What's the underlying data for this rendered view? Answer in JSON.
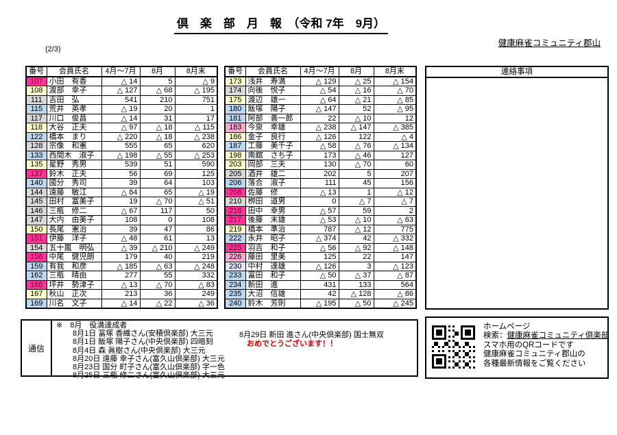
{
  "page": {
    "number_label": "(2/3)"
  },
  "header": {
    "title": "倶　楽　部　月　報　（令和 7年　9月）",
    "organization": "健康麻雀コミュニティ郡山"
  },
  "columns": [
    "番号",
    "会員氏名",
    "4月～7月",
    "8月",
    "8月末"
  ],
  "tables": {
    "left": {
      "rows": [
        {
          "no": "107",
          "name": "小田　有香",
          "apr_jul": "△ 14",
          "aug": "5",
          "aug_end": "△ 9",
          "color": "pink"
        },
        {
          "no": "108",
          "name": "渡部　幸子",
          "apr_jul": "△ 127",
          "aug": "△ 68",
          "aug_end": "△ 195",
          "color": "yellow"
        },
        {
          "no": "111",
          "name": "吉田　弘",
          "apr_jul": "541",
          "aug": "210",
          "aug_end": "751",
          "color": "gray"
        },
        {
          "no": "115",
          "name": "荒井　英孝",
          "apr_jul": "△ 19",
          "aug": "20",
          "aug_end": "1",
          "color": "blue"
        },
        {
          "no": "117",
          "name": "川口　俊昌",
          "apr_jul": "△ 14",
          "aug": "31",
          "aug_end": "17",
          "color": "gray"
        },
        {
          "no": "118",
          "name": "大谷　正夫",
          "apr_jul": "△ 97",
          "aug": "△ 18",
          "aug_end": "△ 115",
          "color": "yellow"
        },
        {
          "no": "122",
          "name": "橋本　まり",
          "apr_jul": "△ 220",
          "aug": "△ 18",
          "aug_end": "△ 238",
          "color": "blue"
        },
        {
          "no": "128",
          "name": "宗像　和憲",
          "apr_jul": "555",
          "aug": "65",
          "aug_end": "620",
          "color": "gray"
        },
        {
          "no": "133",
          "name": "西間木　淑子",
          "apr_jul": "△ 198",
          "aug": "△ 55",
          "aug_end": "△ 253",
          "color": "blue"
        },
        {
          "no": "135",
          "name": "星野　秀男",
          "apr_jul": "539",
          "aug": "51",
          "aug_end": "590",
          "color": "yellow"
        },
        {
          "no": "137",
          "name": "鈴木　正夫",
          "apr_jul": "56",
          "aug": "69",
          "aug_end": "125",
          "color": "pink"
        },
        {
          "no": "140",
          "name": "國分　秀司",
          "apr_jul": "39",
          "aug": "64",
          "aug_end": "103",
          "color": "blue"
        },
        {
          "no": "144",
          "name": "遠藤　敏江",
          "apr_jul": "△ 84",
          "aug": "65",
          "aug_end": "△ 19",
          "color": "gray"
        },
        {
          "no": "145",
          "name": "田村　富美子",
          "apr_jul": "19",
          "aug": "△ 70",
          "aug_end": "△ 51",
          "color": "gray"
        },
        {
          "no": "146",
          "name": "三瓶　修二",
          "apr_jul": "△ 67",
          "aug": "117",
          "aug_end": "50",
          "color": "gray"
        },
        {
          "no": "147",
          "name": "大内　由美子",
          "apr_jul": "108",
          "aug": "0",
          "aug_end": "108",
          "color": "gray"
        },
        {
          "no": "150",
          "name": "長尾　憲治",
          "apr_jul": "39",
          "aug": "47",
          "aug_end": "86",
          "color": "yellow"
        },
        {
          "no": "151",
          "name": "伊藤　洋子",
          "apr_jul": "△ 48",
          "aug": "61",
          "aug_end": "13",
          "color": "pink"
        },
        {
          "no": "154",
          "name": "五十嵐　明弘",
          "apr_jul": "△ 39",
          "aug": "△ 210",
          "aug_end": "△ 249",
          "color": "gray"
        },
        {
          "no": "156",
          "name": "中尾　健児朗",
          "apr_jul": "179",
          "aug": "40",
          "aug_end": "219",
          "color": "pink"
        },
        {
          "no": "159",
          "name": "有我　和彦",
          "apr_jul": "△ 185",
          "aug": "△ 63",
          "aug_end": "△ 248",
          "color": "blue"
        },
        {
          "no": "162",
          "name": "三瓶　晴由",
          "apr_jul": "277",
          "aug": "55",
          "aug_end": "332",
          "color": "blue"
        },
        {
          "no": "166",
          "name": "坪井　勢津子",
          "apr_jul": "△ 13",
          "aug": "△ 70",
          "aug_end": "△ 83",
          "color": "pink"
        },
        {
          "no": "167",
          "name": "秋山　正次",
          "apr_jul": "213",
          "aug": "36",
          "aug_end": "249",
          "color": "yellow"
        },
        {
          "no": "169",
          "name": "川名　文子",
          "apr_jul": "△ 14",
          "aug": "△ 22",
          "aug_end": "△ 36",
          "color": "blue"
        }
      ]
    },
    "right": {
      "rows": [
        {
          "no": "173",
          "name": "浅井　寿満",
          "apr_jul": "△ 129",
          "aug": "△ 25",
          "aug_end": "△ 154",
          "color": "yellow"
        },
        {
          "no": "174",
          "name": "向後　悦子",
          "apr_jul": "△ 54",
          "aug": "△ 16",
          "aug_end": "△ 70",
          "color": "gray"
        },
        {
          "no": "175",
          "name": "渡辺　雄一",
          "apr_jul": "△ 64",
          "aug": "△ 21",
          "aug_end": "△ 85",
          "color": "yellow"
        },
        {
          "no": "180",
          "name": "飯塚　陽子",
          "apr_jul": "△ 147",
          "aug": "52",
          "aug_end": "△ 95",
          "color": "blue"
        },
        {
          "no": "181",
          "name": "阿部　善一郎",
          "apr_jul": "22",
          "aug": "△ 10",
          "aug_end": "12",
          "color": "blue"
        },
        {
          "no": "183",
          "name": "今泉　幸雄",
          "apr_jul": "△ 238",
          "aug": "△ 147",
          "aug_end": "△ 385",
          "color": "lightpink"
        },
        {
          "no": "186",
          "name": "金子　良行",
          "apr_jul": "△ 126",
          "aug": "122",
          "aug_end": "△ 4",
          "color": "yellow"
        },
        {
          "no": "187",
          "name": "工藤　美千子",
          "apr_jul": "△ 58",
          "aug": "△ 76",
          "aug_end": "△ 134",
          "color": "blue"
        },
        {
          "no": "198",
          "name": "南舘　さち子",
          "apr_jul": "173",
          "aug": "△ 46",
          "aug_end": "127",
          "color": "yellow"
        },
        {
          "no": "203",
          "name": "岡部　三夫",
          "apr_jul": "130",
          "aug": "△ 70",
          "aug_end": "60",
          "color": "yellow"
        },
        {
          "no": "205",
          "name": "酒井　雄二",
          "apr_jul": "202",
          "aug": "5",
          "aug_end": "207",
          "color": "gray"
        },
        {
          "no": "206",
          "name": "落合　淑子",
          "apr_jul": "111",
          "aug": "45",
          "aug_end": "156",
          "color": "blue"
        },
        {
          "no": "208",
          "name": "佐藤　修",
          "apr_jul": "△ 13",
          "aug": "1",
          "aug_end": "△ 12",
          "color": "pink"
        },
        {
          "no": "210",
          "name": "栁田　道男",
          "apr_jul": "0",
          "aug": "△ 7",
          "aug_end": "△ 7",
          "color": "gray"
        },
        {
          "no": "216",
          "name": "田中　幸男",
          "apr_jul": "△ 57",
          "aug": "59",
          "aug_end": "2",
          "color": "pink"
        },
        {
          "no": "217",
          "name": "後藤　末雄",
          "apr_jul": "△ 53",
          "aug": "△ 10",
          "aug_end": "△ 63",
          "color": "pink"
        },
        {
          "no": "219",
          "name": "橋本　準治",
          "apr_jul": "787",
          "aug": "△ 12",
          "aug_end": "775",
          "color": "yellow"
        },
        {
          "no": "222",
          "name": "永井　昭子",
          "apr_jul": "△ 374",
          "aug": "42",
          "aug_end": "△ 332",
          "color": "blue"
        },
        {
          "no": "225",
          "name": "羽吉　和子",
          "apr_jul": "△ 56",
          "aug": "△ 92",
          "aug_end": "△ 148",
          "color": "pink"
        },
        {
          "no": "226",
          "name": "藤田　里美",
          "apr_jul": "125",
          "aug": "22",
          "aug_end": "147",
          "color": "lightpink"
        },
        {
          "no": "230",
          "name": "中村　達雄",
          "apr_jul": "△ 126",
          "aug": "3",
          "aug_end": "△ 123",
          "color": "lavender"
        },
        {
          "no": "233",
          "name": "冨田　和子",
          "apr_jul": "△ 50",
          "aug": "△ 37",
          "aug_end": "△ 87",
          "color": "blue"
        },
        {
          "no": "234",
          "name": "新田　進",
          "apr_jul": "431",
          "aug": "133",
          "aug_end": "564",
          "color": "blue"
        },
        {
          "no": "235",
          "name": "大沼　信雄",
          "apr_jul": "42",
          "aug": "△ 128",
          "aug_end": "△ 86",
          "color": "blue"
        },
        {
          "no": "240",
          "name": "鈴木　芳則",
          "apr_jul": "△ 195",
          "aug": "△ 50",
          "aug_end": "△ 245",
          "color": "blue"
        }
      ]
    }
  },
  "notes": {
    "title": "連絡事項"
  },
  "communication": {
    "label": "通信",
    "heading": "※　8月　役満達成者",
    "achievements": [
      "8月1日 冨塚 香織さん(安積倶楽部) 大三元",
      "8月1日 飯塚 陽子さん(中央倶楽部) 四暗刻",
      "8月4日 森 眞樹さん(中央倶楽部) 大三元",
      "8月20日 遠藤 幸子さん(富久山倶楽部) 大三元",
      "8月23日 国分 町子さん(富久山倶楽部) 字一色",
      "8月25日 三瓶 修二さん(富久山倶楽部) 大三元"
    ],
    "extra_achievement": "8月29日 新田 進さん(中央倶楽部) 国士無双",
    "congratulations": "おめでとうございます！！"
  },
  "homepage": {
    "title": "ホームページ",
    "search_prefix": "検索：",
    "search_link": "健康麻雀コミュニティ倶楽部",
    "line_qr": "スマホ用のQRコードです",
    "line_info1": "健康麻雀コミュニティ郡山の",
    "line_info2": "各種最新情報をご覧ください"
  },
  "row_colors": {
    "pink": "#ff3399",
    "lightpink": "#ffaad4",
    "yellow": "#ffffcc",
    "gray": "#d9d9d9",
    "blue": "#bdd7ee",
    "lavender": "#e4e4f6"
  },
  "pink_text_color": "#5f0c26",
  "accent": {
    "red": "#cc0000"
  }
}
